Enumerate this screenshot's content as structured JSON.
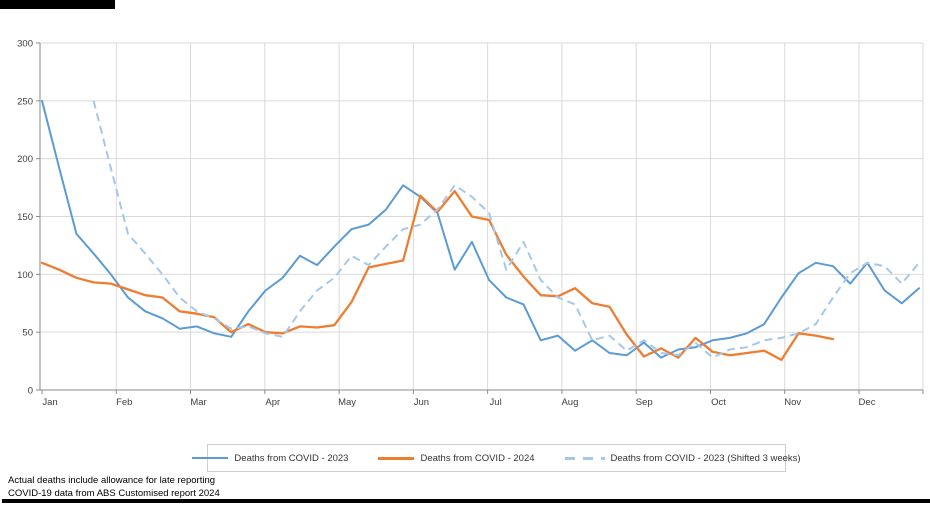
{
  "chart_data": {
    "type": "line",
    "title": "",
    "xlabel": "",
    "ylabel": "",
    "x_unit": "week-of-year",
    "weeks_total": 52,
    "ylim": [
      0,
      300
    ],
    "y_ticks": [
      0,
      50,
      100,
      150,
      200,
      250,
      300
    ],
    "months": [
      "Jan",
      "Feb",
      "Mar",
      "Apr",
      "May",
      "Jun",
      "Jul",
      "Aug",
      "Sep",
      "Oct",
      "Nov",
      "Dec"
    ],
    "grid": true,
    "legend_position": "bottom",
    "series": [
      {
        "name": "Deaths from COVID - 2023",
        "color": "#5B9BD5",
        "style": "solid",
        "start_week": 1,
        "values": [
          250,
          192,
          135,
          118,
          100,
          80,
          68,
          62,
          53,
          55,
          49,
          46,
          68,
          86,
          97,
          116,
          108,
          124,
          139,
          143,
          156,
          177,
          167,
          153,
          104,
          128,
          95,
          80,
          74,
          43,
          47,
          34,
          43,
          32,
          30,
          41,
          28,
          35,
          37,
          43,
          45,
          49,
          57,
          80,
          101,
          110,
          107,
          92,
          110,
          86,
          75,
          88
        ]
      },
      {
        "name": "Deaths from COVID - 2024",
        "color": "#ED7D31",
        "style": "solid",
        "start_week": 1,
        "values": [
          110,
          104,
          97,
          93,
          92,
          87,
          82,
          80,
          68,
          66,
          63,
          50,
          57,
          50,
          49,
          55,
          54,
          56,
          76,
          106,
          109,
          112,
          168,
          154,
          172,
          150,
          147,
          117,
          98,
          82,
          81,
          88,
          75,
          72,
          48,
          29,
          36,
          28,
          45,
          33,
          30,
          32,
          34,
          26,
          49,
          47,
          44
        ]
      },
      {
        "name": "Deaths from COVID - 2023 (Shifted 3 weeks)",
        "color": "#A5C8E9",
        "style": "dashed",
        "start_week": 4,
        "shift_weeks": 3,
        "values": [
          250,
          192,
          135,
          118,
          100,
          80,
          68,
          62,
          53,
          55,
          49,
          46,
          68,
          86,
          97,
          116,
          108,
          124,
          139,
          143,
          156,
          177,
          167,
          153,
          104,
          128,
          95,
          80,
          74,
          43,
          47,
          34,
          43,
          32,
          30,
          41,
          28,
          35,
          37,
          43,
          45,
          49,
          57,
          80,
          101,
          110,
          107,
          92,
          110
        ]
      }
    ],
    "colors": {
      "grid": "#D9D9D9",
      "axis": "#8a8a8a",
      "tick_label": "#404040"
    }
  },
  "footer": {
    "line1": "Actual deaths include allowance for late reporting",
    "line2": "COVID-19 data from ABS Customised report 2024"
  }
}
